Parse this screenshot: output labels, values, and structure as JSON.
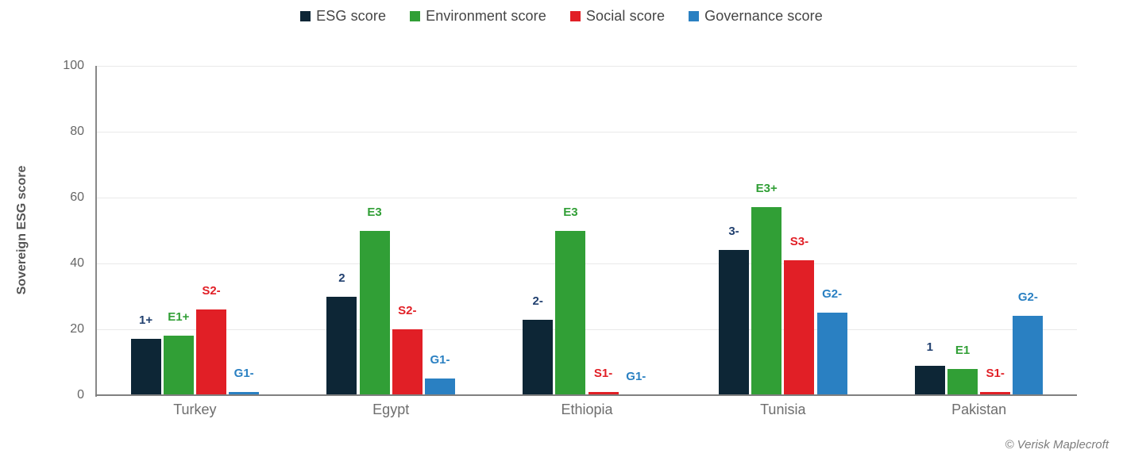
{
  "chart_data": {
    "type": "bar",
    "title": "",
    "ylabel": "Sovereign ESG score",
    "xlabel": "",
    "ylim": [
      0,
      100
    ],
    "yticks": [
      0,
      20,
      40,
      60,
      80,
      100
    ],
    "grid": true,
    "legend_position": "top",
    "categories": [
      "Turkey",
      "Egypt",
      "Ethiopia",
      "Tunisia",
      "Pakistan"
    ],
    "series": [
      {
        "name": "ESG score",
        "color": "#0d2636",
        "label_color": "#21406f",
        "values": [
          17,
          30,
          23,
          44,
          9
        ],
        "point_labels": [
          "1+",
          "2",
          "2-",
          "3-",
          "1"
        ]
      },
      {
        "name": "Environment score",
        "color": "#319f36",
        "label_color": "#319f36",
        "values": [
          18,
          50,
          50,
          57,
          8
        ],
        "point_labels": [
          "E1+",
          "E3",
          "E3",
          "E3+",
          "E1"
        ]
      },
      {
        "name": "Social score",
        "color": "#e11f26",
        "label_color": "#e11f26",
        "values": [
          26,
          20,
          1,
          41,
          1
        ],
        "point_labels": [
          "S2-",
          "S2-",
          "S1-",
          "S3-",
          "S1-"
        ]
      },
      {
        "name": "Governance score",
        "color": "#2a80c2",
        "label_color": "#2a80c2",
        "values": [
          1,
          5,
          0,
          25,
          24
        ],
        "point_labels": [
          "G1-",
          "G1-",
          "G1-",
          "G2-",
          "G2-"
        ]
      }
    ]
  },
  "footer": {
    "credit": "© Verisk Maplecroft"
  }
}
